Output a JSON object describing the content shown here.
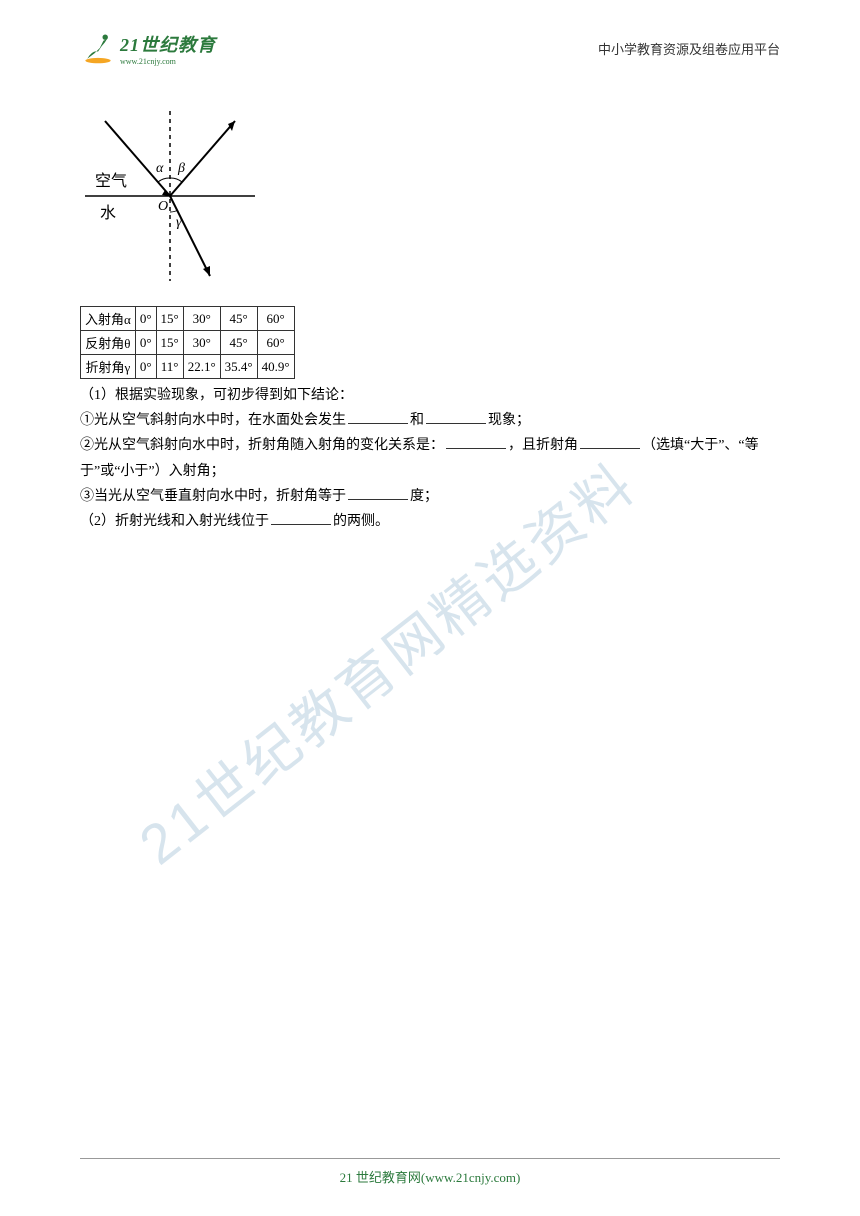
{
  "header": {
    "logo_main": "21世纪教育",
    "logo_sub": "www.21cnjy.com",
    "right_text": "中小学教育资源及组卷应用平台"
  },
  "diagram": {
    "label_air": "空气",
    "label_water": "水",
    "label_alpha": "α",
    "label_beta": "β",
    "label_gamma": "γ",
    "label_o": "O",
    "colors": {
      "stroke": "#000000",
      "bg": "#ffffff"
    }
  },
  "table": {
    "rows": [
      {
        "label": "入射角α",
        "cells": [
          "0°",
          "15°",
          "30°",
          "45°",
          "60°"
        ]
      },
      {
        "label": "反射角θ",
        "cells": [
          "0°",
          "15°",
          "30°",
          "45°",
          "60°"
        ]
      },
      {
        "label": "折射角γ",
        "cells": [
          "0°",
          "11°",
          "22.1°",
          "35.4°",
          "40.9°"
        ]
      }
    ]
  },
  "questions": {
    "intro": "（1）根据实验现象，可初步得到如下结论：",
    "q1_a": "①光从空气斜射向水中时，在水面处会发生",
    "q1_b": "和",
    "q1_c": "现象；",
    "q2_a": "②光从空气斜射向水中时，折射角随入射角的变化关系是：",
    "q2_b": "，且折射角",
    "q2_c": "（选填“大于”、“等于”或“小于”）入射角；",
    "q3_a": "③当光从空气垂直射向水中时，折射角等于",
    "q3_b": "度；",
    "q4_a": "（2）折射光线和入射光线位于",
    "q4_b": "的两侧。"
  },
  "watermark": {
    "text": "21世纪教育网精选资料"
  },
  "footer": {
    "text": "21 世纪教育网(www.21cnjy.com)"
  }
}
